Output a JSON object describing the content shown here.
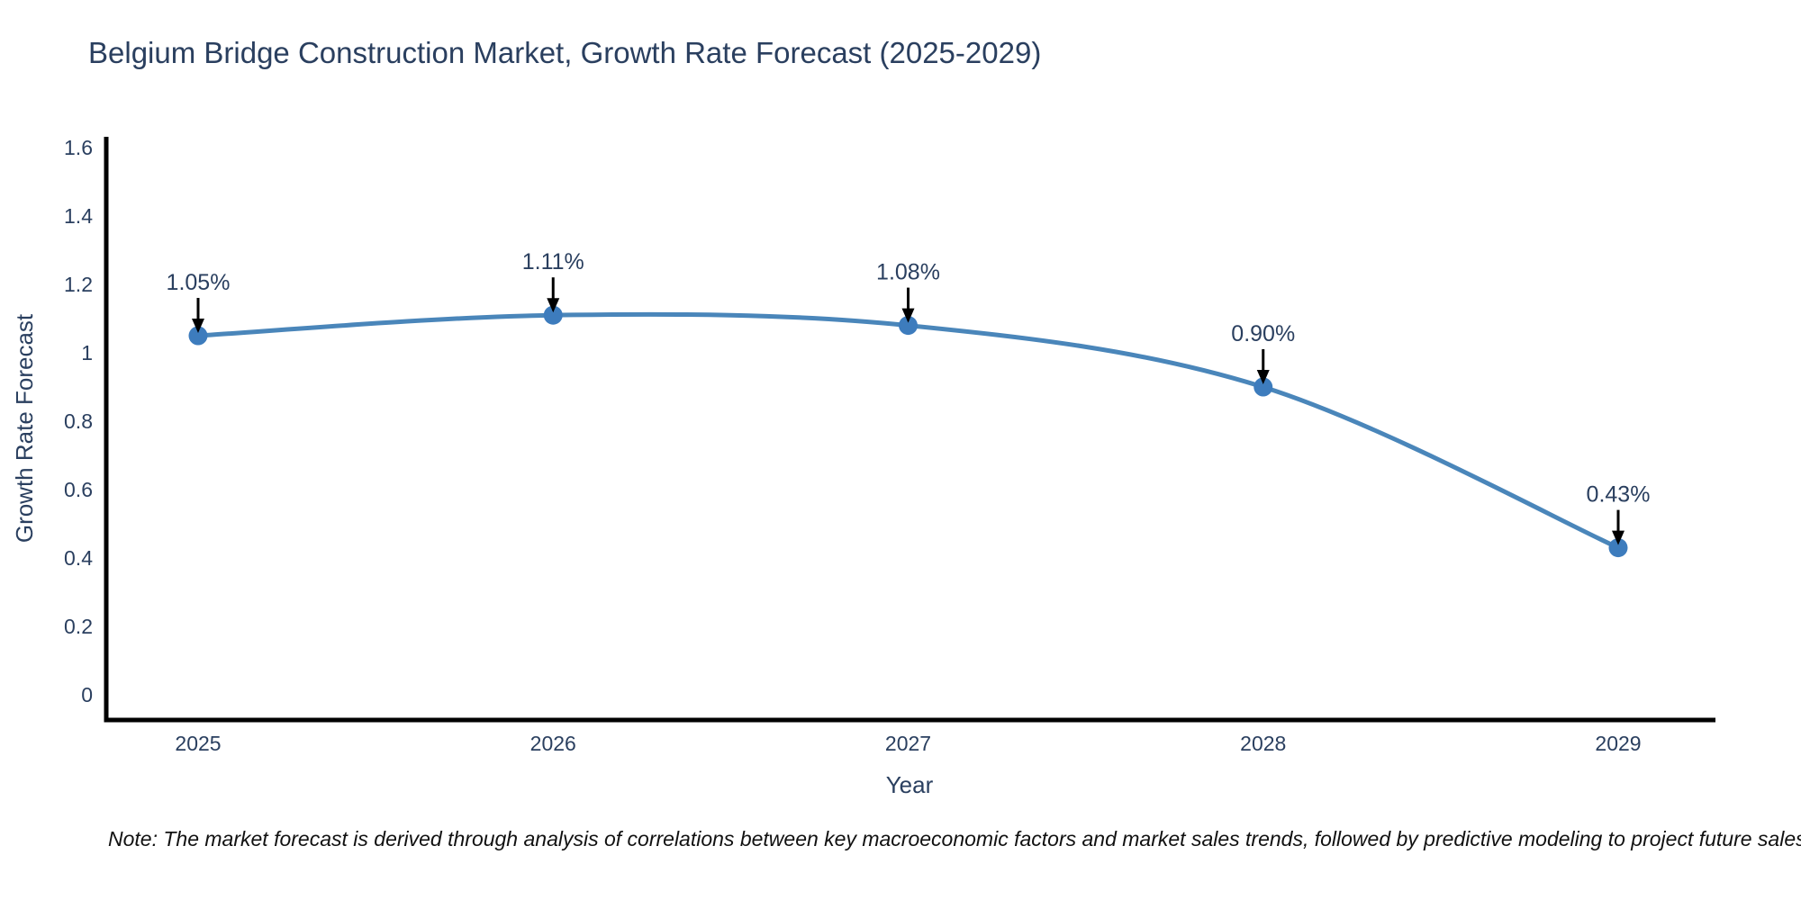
{
  "page": {
    "title": "Belgium Bridge Construction Market, Growth Rate Forecast (2025-2029)",
    "note": "Note: The market forecast is derived through analysis of correlations between key macroeconomic factors and market sales trends, followed by predictive modeling to project future sales"
  },
  "chart_data": {
    "type": "line",
    "title": "Belgium Bridge Construction Market, Growth Rate Forecast (2025-2029)",
    "x": [
      "2025",
      "2026",
      "2027",
      "2028",
      "2029"
    ],
    "series": [
      {
        "name": "Growth Rate Forecast",
        "values": [
          1.05,
          1.11,
          1.08,
          0.9,
          0.43
        ]
      }
    ],
    "point_labels": [
      "1.05%",
      "1.11%",
      "1.08%",
      "0.90%",
      "0.43%"
    ],
    "xlabel": "Year",
    "ylabel": "Growth Rate Forecast",
    "yticks": [
      0,
      0.2,
      0.4,
      0.6,
      0.8,
      1,
      1.2,
      1.4,
      1.6
    ],
    "ylim": [
      -0.07,
      1.63
    ],
    "grid": false,
    "legend": "none",
    "line_shape": "spline",
    "colors": {
      "line": "#4a86ba",
      "marker": "#3d7cbd",
      "axis": "#000000",
      "text": "#2a3f5f",
      "arrow": "#000000",
      "note": "#111111"
    }
  }
}
